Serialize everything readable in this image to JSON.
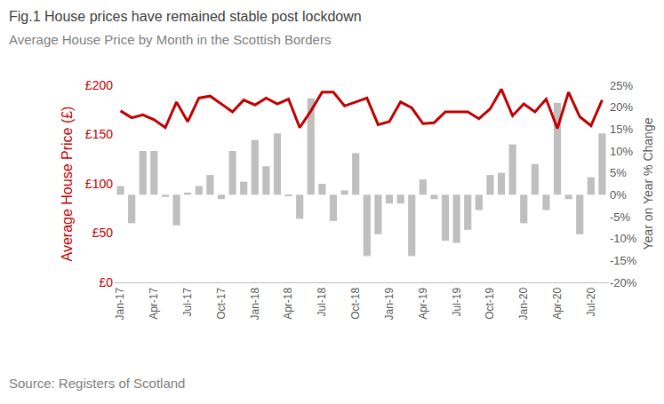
{
  "chart_data": {
    "type": "combo",
    "title": "Fig.1 House prices have remained stable post lockdown",
    "subtitle": "Average House Price by Month in the Scottish Borders",
    "source": "Source: Registers of Scotland",
    "ylabel": "Average House Price (£)",
    "y2label": "Year on Year % Change",
    "categories": [
      "Jan-17",
      null,
      null,
      "Apr-17",
      null,
      null,
      "Jul-17",
      null,
      null,
      "Oct-17",
      null,
      null,
      "Jan-18",
      null,
      null,
      "Apr-18",
      null,
      null,
      "Jul-18",
      null,
      null,
      "Oct-18",
      null,
      null,
      "Jan-19",
      null,
      null,
      "Apr-19",
      null,
      null,
      "Jul-19",
      null,
      null,
      "Oct-19",
      null,
      null,
      "Jan-20",
      null,
      null,
      "Apr-20",
      null,
      null,
      "Jul-20",
      null
    ],
    "series": [
      {
        "type": "bar",
        "axis": "y2",
        "color": "#bfbfbf",
        "values": [
          2,
          -6.5,
          10,
          10,
          -0.5,
          -7,
          0.5,
          2,
          4.5,
          -1,
          10,
          3,
          12.5,
          6.5,
          14,
          -0.3,
          -5.5,
          22,
          2.5,
          -6,
          1,
          9.5,
          -14,
          -9,
          -2,
          -2,
          -14,
          3.5,
          -1,
          -10.5,
          -11,
          -8,
          -3.5,
          4.5,
          5,
          11.5,
          -6.5,
          7,
          -3.5,
          21,
          -1,
          -9,
          4,
          14
        ]
      },
      {
        "type": "line",
        "color": "#c00000",
        "values": [
          174,
          167,
          170,
          165,
          157,
          183,
          163,
          187,
          189,
          181,
          173,
          185,
          180,
          187,
          181,
          186,
          157,
          174,
          193,
          193,
          179,
          183,
          187,
          160,
          163,
          183,
          177,
          161,
          162,
          173,
          173,
          173,
          166,
          176,
          196,
          169,
          181,
          173,
          186,
          156,
          193,
          168,
          159,
          185
        ]
      }
    ],
    "ylim": [
      0,
      200
    ],
    "yticks": [
      {
        "value": 0,
        "label": "£0"
      },
      {
        "value": 50,
        "label": "£50"
      },
      {
        "value": 100,
        "label": "£100"
      },
      {
        "value": 150,
        "label": "£150"
      },
      {
        "value": 200,
        "label": "£200"
      }
    ],
    "y2lim": [
      -20,
      25
    ],
    "y2ticks": [
      {
        "value": -20,
        "label": "-20%"
      },
      {
        "value": -15,
        "label": "-15%"
      },
      {
        "value": -10,
        "label": "-10%"
      },
      {
        "value": -5,
        "label": "-5%"
      },
      {
        "value": 0,
        "label": "0%"
      },
      {
        "value": 5,
        "label": "5%"
      },
      {
        "value": 10,
        "label": "10%"
      },
      {
        "value": 15,
        "label": "15%"
      },
      {
        "value": 20,
        "label": "20%"
      },
      {
        "value": 25,
        "label": "25%"
      }
    ],
    "grid": false
  }
}
